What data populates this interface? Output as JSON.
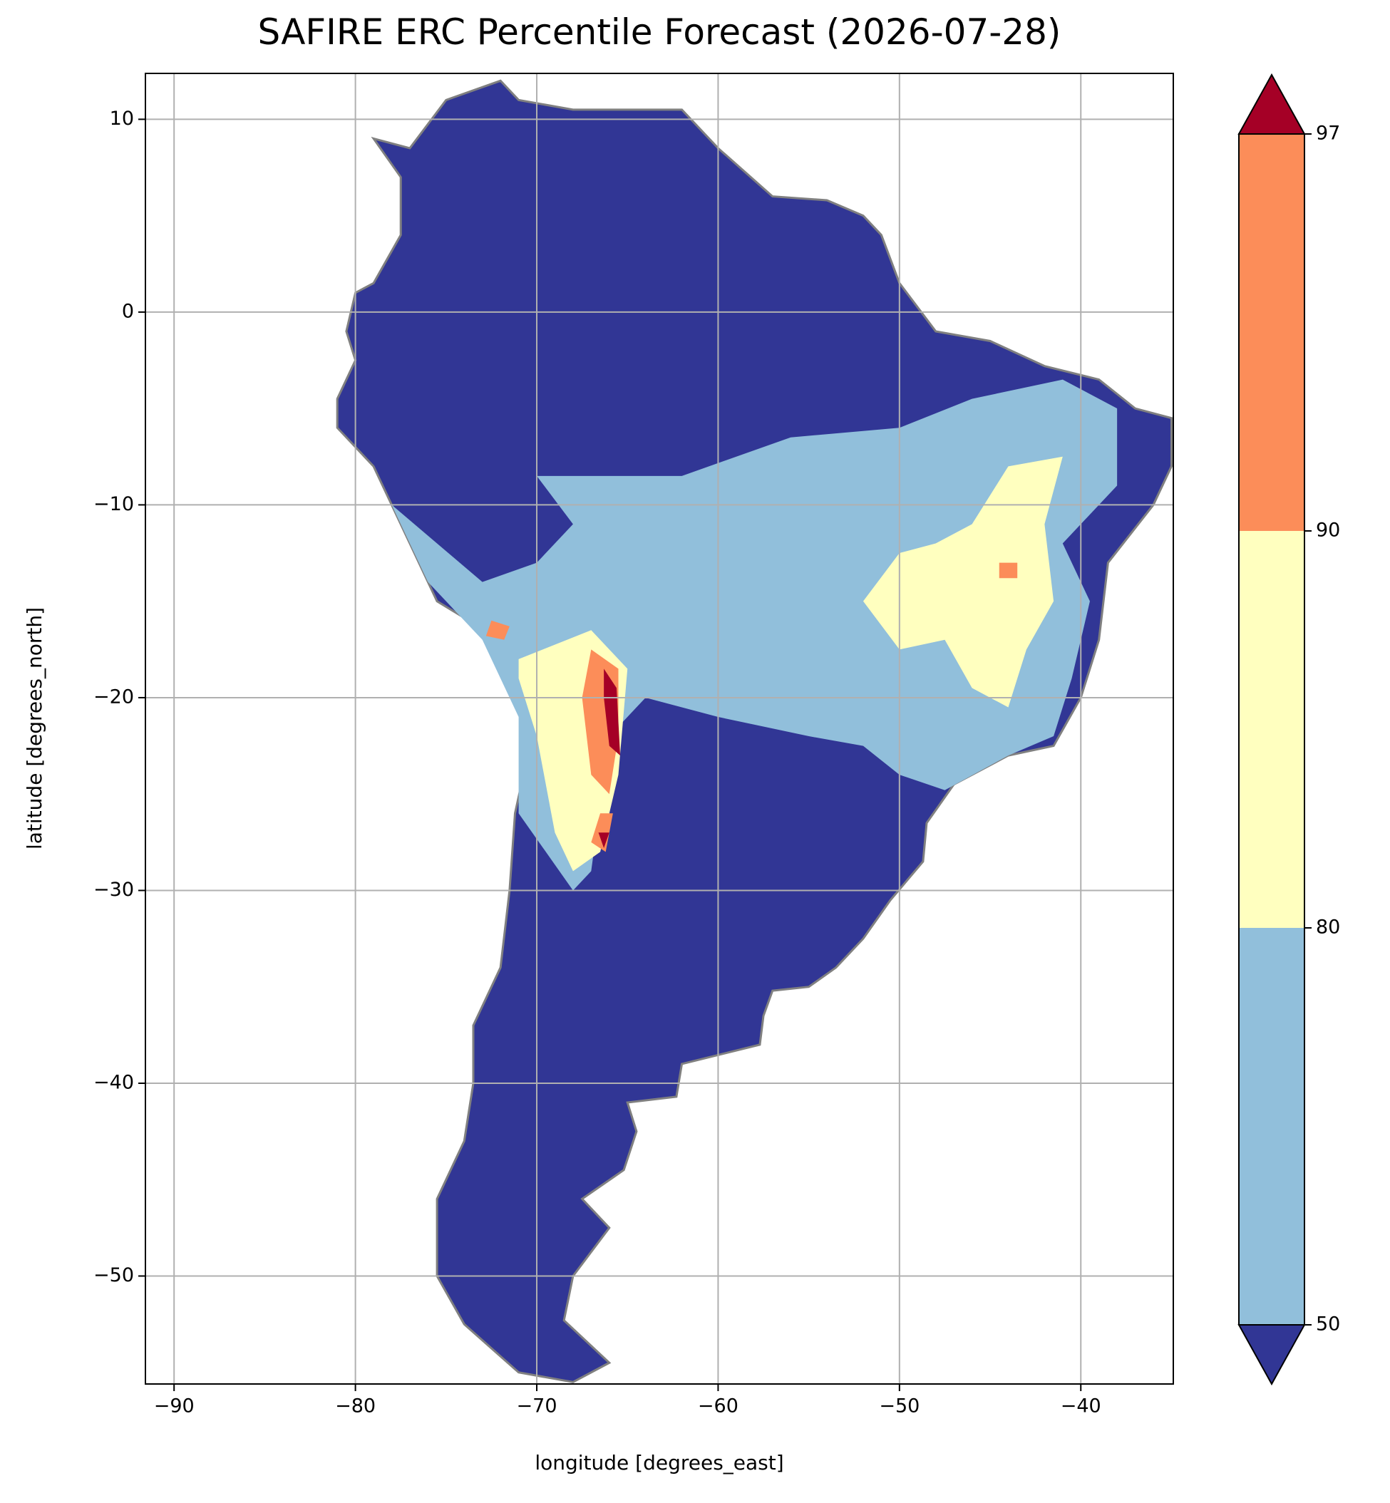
{
  "chart_data": {
    "type": "map",
    "title": "SAFIRE ERC Percentile Forecast (2026-07-28)",
    "xlabel": "longitude [degrees_east]",
    "ylabel": "latitude [degrees_north]",
    "xlim": [
      -91.58,
      -34.9
    ],
    "ylim": [
      -55.6,
      12.38
    ],
    "xticks": [
      {
        "value": -90,
        "label": "−90"
      },
      {
        "value": -80,
        "label": "−80"
      },
      {
        "value": -70,
        "label": "−70"
      },
      {
        "value": -60,
        "label": "−60"
      },
      {
        "value": -50,
        "label": "−50"
      },
      {
        "value": -40,
        "label": "−40"
      }
    ],
    "yticks": [
      {
        "value": -50,
        "label": "−50"
      },
      {
        "value": -40,
        "label": "−40"
      },
      {
        "value": -30,
        "label": "−30"
      },
      {
        "value": -20,
        "label": "−20"
      },
      {
        "value": -10,
        "label": "−10"
      },
      0,
      10
    ],
    "grid": true,
    "colorbar": {
      "levels": [
        50,
        80,
        90,
        97
      ],
      "colors": [
        "#313695",
        "#91bfdb",
        "#ffffbf",
        "#fc8d59",
        "#a50026"
      ],
      "extend": "both"
    }
  }
}
